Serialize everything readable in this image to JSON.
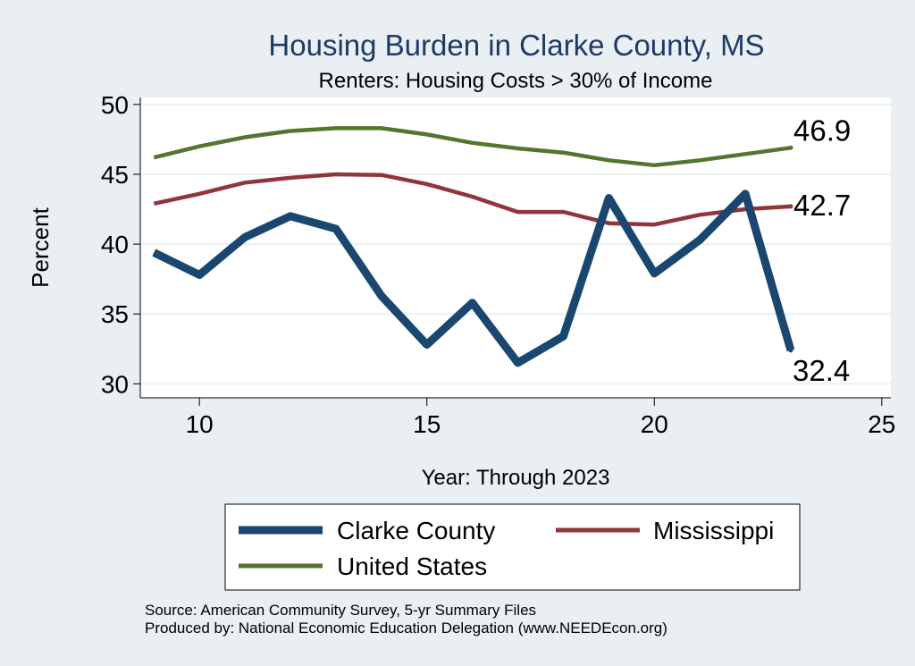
{
  "chart_data": {
    "type": "line",
    "title": "Housing Burden in Clarke County, MS",
    "subtitle": "Renters: Housing Costs > 30% of Income",
    "xlabel": "Year: Through 2023",
    "ylabel": "Percent",
    "xlim": [
      8.7,
      25.2
    ],
    "ylim": [
      29.0,
      50.5
    ],
    "x_ticks": [
      10,
      15,
      20,
      25
    ],
    "y_ticks": [
      30,
      35,
      40,
      45,
      50
    ],
    "grid": true,
    "x": [
      9,
      10,
      11,
      12,
      13,
      14,
      15,
      16,
      17,
      18,
      19,
      20,
      21,
      22,
      23
    ],
    "series": [
      {
        "name": "Clarke County",
        "color": "#1a476f",
        "values": [
          39.4,
          37.8,
          40.5,
          42.0,
          41.1,
          36.3,
          32.8,
          35.8,
          31.5,
          33.4,
          43.3,
          37.9,
          40.3,
          43.6,
          32.4
        ],
        "end_label": "32.4"
      },
      {
        "name": "Mississippi",
        "color": "#90353b",
        "values": [
          42.9,
          43.6,
          44.4,
          44.75,
          45.0,
          44.95,
          44.3,
          43.4,
          42.3,
          42.3,
          41.5,
          41.4,
          42.1,
          42.5,
          42.7
        ],
        "end_label": "42.7"
      },
      {
        "name": "United States",
        "color": "#55752f",
        "values": [
          46.2,
          47.0,
          47.65,
          48.1,
          48.3,
          48.3,
          47.85,
          47.25,
          46.85,
          46.55,
          46.0,
          45.65,
          46.0,
          46.45,
          46.9
        ],
        "end_label": "46.9"
      }
    ],
    "legend_position": "bottom"
  },
  "footer": {
    "source": "Source: American Community Survey, 5-yr Summary Files",
    "produced_by": "Produced by: National Economic Education Delegation (www.NEEDEcon.org)"
  },
  "colors": {
    "background": "#e9eff2",
    "plot_background": "#ffffff",
    "title": "#1e3a66",
    "grid": "#eaf1f3"
  }
}
